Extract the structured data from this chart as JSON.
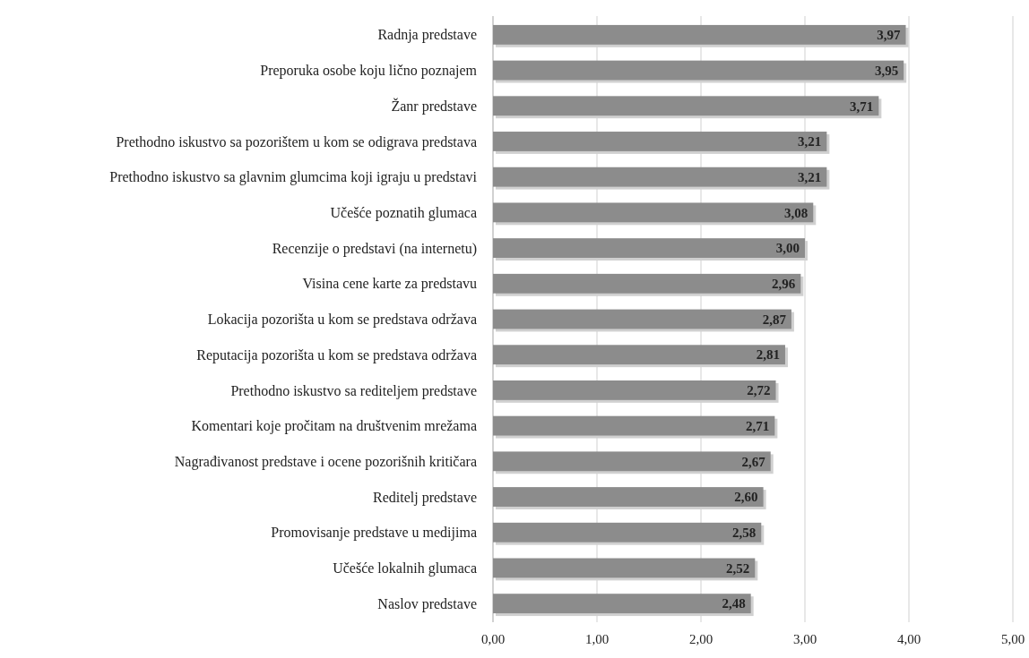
{
  "chart_data": {
    "type": "bar",
    "orientation": "horizontal",
    "categories": [
      "Radnja predstave",
      "Preporuka osobe koju lično poznajem",
      "Žanr predstave",
      "Prethodno iskustvo sa pozorištem u kom se odigrava predstava",
      "Prethodno iskustvo sa glavnim glumcima koji igraju u predstavi",
      "Učešće poznatih glumaca",
      "Recenzije o predstavi (na internetu)",
      "Visina cene karte za predstavu",
      "Lokacija pozorišta u kom se predstava održava",
      "Reputacija pozorišta u kom se predstava održava",
      "Prethodno iskustvo sa rediteljem predstave",
      "Komentari koje pročitam na društvenim mrežama",
      "Nagrađivanost predstave i ocene pozorišnih kritičara",
      "Reditelj predstave",
      "Promovisanje predstave u medijima",
      "Učešće lokalnih glumaca",
      "Naslov predstave"
    ],
    "values": [
      3.97,
      3.95,
      3.71,
      3.21,
      3.21,
      3.08,
      3.0,
      2.96,
      2.87,
      2.81,
      2.72,
      2.71,
      2.67,
      2.6,
      2.58,
      2.52,
      2.48
    ],
    "value_labels": [
      "3,97",
      "3,95",
      "3,71",
      "3,21",
      "3,21",
      "3,08",
      "3,00",
      "2,96",
      "2,87",
      "2,81",
      "2,72",
      "2,71",
      "2,67",
      "2,60",
      "2,58",
      "2,52",
      "2,48"
    ],
    "color": "#8c8c8c",
    "xlim": [
      0,
      5
    ],
    "xticks": [
      {
        "value": 0,
        "label": "0,00"
      },
      {
        "value": 1,
        "label": "1,00"
      },
      {
        "value": 2,
        "label": "2,00"
      },
      {
        "value": 3,
        "label": "3,00"
      },
      {
        "value": 4,
        "label": "4,00"
      },
      {
        "value": 5,
        "label": "5,00"
      }
    ],
    "grid": "x"
  }
}
